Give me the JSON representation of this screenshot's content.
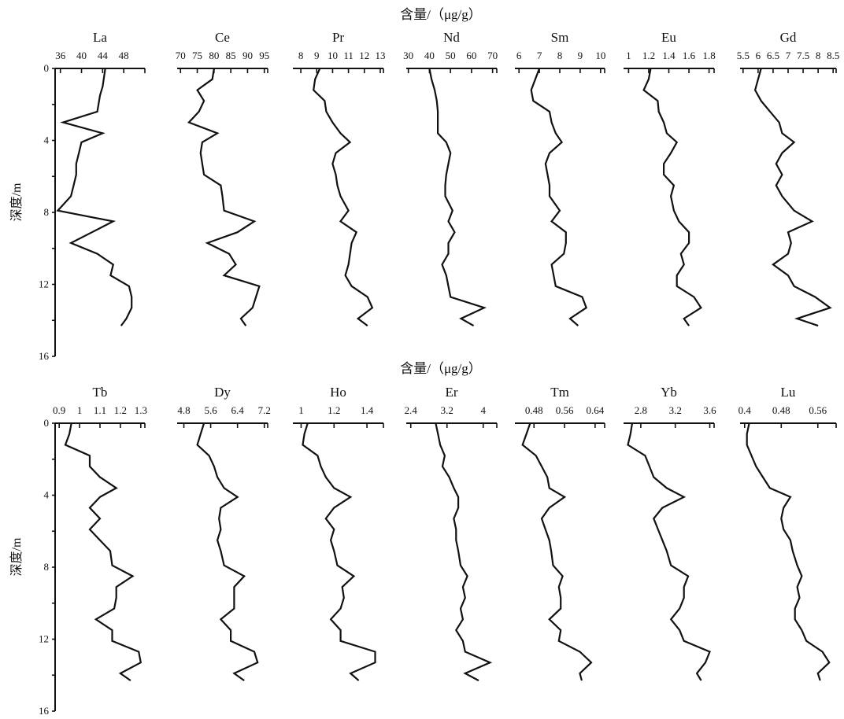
{
  "unit_title": "含量/（μg/g）",
  "ylabel": "深度/m",
  "depth_ticks": [
    0,
    4,
    8,
    12,
    16
  ],
  "chart_data": [
    {
      "type": "line",
      "name": "La",
      "xticks": [
        36,
        40,
        44,
        48
      ],
      "xlim": [
        35,
        52
      ],
      "ylim": [
        0,
        16
      ],
      "depth": [
        0,
        1,
        1.5,
        2.4,
        3.0,
        3.6,
        4.1,
        4.7,
        5.3,
        5.9,
        6.5,
        7.1,
        7.9,
        8.5,
        9.1,
        9.7,
        10.3,
        10.9,
        11.5,
        12.1,
        12.7,
        13.3,
        13.9,
        14.3
      ],
      "values": [
        44.5,
        44,
        43.5,
        43,
        36.5,
        44,
        40,
        39.5,
        39,
        39,
        38.5,
        38,
        35.5,
        46,
        42,
        38,
        43,
        46,
        45.5,
        49,
        49.5,
        49.5,
        48.5,
        47.5
      ]
    },
    {
      "type": "line",
      "name": "Ce",
      "xticks": [
        70,
        75,
        80,
        85,
        90,
        95
      ],
      "xlim": [
        69,
        96
      ],
      "ylim": [
        0,
        16
      ],
      "depth": [
        0,
        0.6,
        1.2,
        1.8,
        2.4,
        3.0,
        3.6,
        4.1,
        4.7,
        5.3,
        5.9,
        6.5,
        7.1,
        7.9,
        8.5,
        9.1,
        9.7,
        10.3,
        10.9,
        11.5,
        12.1,
        12.7,
        13.3,
        13.9,
        14.3
      ],
      "values": [
        80,
        79.5,
        75,
        77,
        75.5,
        72.5,
        81,
        76.5,
        76,
        76.5,
        77,
        82,
        82.5,
        83,
        92,
        87,
        78,
        84.5,
        86.5,
        83,
        93.5,
        92.5,
        91.5,
        88,
        89.5
      ]
    },
    {
      "type": "line",
      "name": "Pr",
      "xticks": [
        8,
        9,
        10,
        11,
        12,
        13
      ],
      "xlim": [
        7.5,
        13.2
      ],
      "ylim": [
        0,
        16
      ],
      "depth": [
        0,
        0.6,
        1.2,
        1.8,
        2.4,
        3.0,
        3.6,
        4.1,
        4.7,
        5.3,
        5.9,
        6.5,
        7.1,
        7.9,
        8.5,
        9.1,
        9.7,
        10.3,
        10.9,
        11.5,
        12.1,
        12.7,
        13.3,
        13.9,
        14.3
      ],
      "values": [
        9.2,
        8.9,
        8.8,
        9.5,
        9.6,
        10,
        10.5,
        11.1,
        10.2,
        10,
        10.2,
        10.3,
        10.5,
        11,
        10.5,
        11.5,
        11.2,
        11.1,
        11,
        10.8,
        11.2,
        12.2,
        12.5,
        11.6,
        12.2
      ]
    },
    {
      "type": "line",
      "name": "Nd",
      "xticks": [
        30,
        40,
        50,
        60,
        70
      ],
      "xlim": [
        29,
        72
      ],
      "ylim": [
        0,
        16
      ],
      "depth": [
        0,
        0.6,
        1.2,
        1.8,
        2.4,
        3.0,
        3.6,
        4.1,
        4.7,
        5.3,
        5.9,
        6.5,
        7.1,
        7.9,
        8.5,
        9.1,
        9.7,
        10.3,
        10.9,
        11.5,
        12.1,
        12.7,
        13.3,
        13.9,
        14.3
      ],
      "values": [
        40,
        41,
        42.5,
        43.5,
        44,
        44,
        44,
        48,
        50,
        49,
        48,
        47.5,
        47.5,
        51,
        49,
        52,
        49,
        49,
        46,
        48,
        49,
        50,
        66,
        55,
        61
      ]
    },
    {
      "type": "line",
      "name": "Sm",
      "xticks": [
        6,
        7,
        8,
        9,
        10
      ],
      "xlim": [
        5.8,
        10.2
      ],
      "ylim": [
        0,
        16
      ],
      "depth": [
        0,
        0.6,
        1.2,
        1.8,
        2.4,
        3.0,
        3.6,
        4.1,
        4.7,
        5.3,
        5.9,
        6.5,
        7.1,
        7.9,
        8.5,
        9.1,
        9.7,
        10.3,
        10.9,
        11.5,
        12.1,
        12.7,
        13.3,
        13.9,
        14.3
      ],
      "values": [
        7.0,
        6.8,
        6.6,
        6.7,
        7.5,
        7.6,
        7.8,
        8.1,
        7.5,
        7.3,
        7.4,
        7.5,
        7.5,
        8.0,
        7.6,
        8.3,
        8.3,
        8.2,
        7.6,
        7.7,
        7.8,
        9.1,
        9.3,
        8.5,
        8.9
      ]
    },
    {
      "type": "line",
      "name": "Eu",
      "xticks": [
        1,
        1.2,
        1.4,
        1.6,
        1.8
      ],
      "xlim": [
        0.95,
        1.85
      ],
      "ylim": [
        0,
        16
      ],
      "depth": [
        0,
        0.6,
        1.2,
        1.8,
        2.4,
        3.0,
        3.6,
        4.1,
        4.7,
        5.3,
        5.9,
        6.5,
        7.1,
        7.9,
        8.5,
        9.1,
        9.7,
        10.3,
        10.9,
        11.5,
        12.1,
        12.7,
        13.3,
        13.9,
        14.3
      ],
      "values": [
        1.22,
        1.2,
        1.15,
        1.29,
        1.3,
        1.35,
        1.38,
        1.48,
        1.42,
        1.35,
        1.35,
        1.45,
        1.42,
        1.45,
        1.5,
        1.6,
        1.6,
        1.52,
        1.55,
        1.48,
        1.48,
        1.65,
        1.72,
        1.55,
        1.6
      ]
    },
    {
      "type": "line",
      "name": "Gd",
      "xticks": [
        5.5,
        6,
        6.5,
        7,
        7.5,
        8,
        8.5
      ],
      "xlim": [
        5.4,
        8.6
      ],
      "ylim": [
        0,
        16
      ],
      "depth": [
        0,
        0.6,
        1.2,
        1.8,
        2.4,
        3.0,
        3.6,
        4.1,
        4.7,
        5.3,
        5.9,
        6.5,
        7.1,
        7.9,
        8.5,
        9.1,
        9.7,
        10.3,
        10.9,
        11.5,
        12.1,
        12.7,
        13.3,
        13.9,
        14.3
      ],
      "values": [
        6.1,
        6.0,
        5.9,
        6.1,
        6.4,
        6.7,
        6.8,
        7.2,
        6.8,
        6.6,
        6.8,
        6.6,
        6.8,
        7.2,
        7.8,
        7.0,
        7.1,
        7.0,
        6.5,
        7.0,
        7.2,
        7.9,
        8.4,
        7.3,
        8.0
      ]
    },
    {
      "type": "line",
      "name": "Tb",
      "xticks": [
        0.9,
        1,
        1.1,
        1.2,
        1.3
      ],
      "xlim": [
        0.88,
        1.32
      ],
      "ylim": [
        0,
        16
      ],
      "depth": [
        0,
        0.6,
        1.2,
        1.8,
        2.4,
        3.0,
        3.6,
        4.1,
        4.7,
        5.3,
        5.9,
        6.5,
        7.1,
        7.9,
        8.5,
        9.1,
        9.7,
        10.3,
        10.9,
        11.5,
        12.1,
        12.7,
        13.3,
        13.9,
        14.3
      ],
      "values": [
        0.96,
        0.95,
        0.93,
        1.05,
        1.05,
        1.1,
        1.18,
        1.1,
        1.05,
        1.1,
        1.05,
        1.1,
        1.15,
        1.16,
        1.26,
        1.18,
        1.18,
        1.17,
        1.08,
        1.16,
        1.16,
        1.29,
        1.3,
        1.2,
        1.25
      ]
    },
    {
      "type": "line",
      "name": "Dy",
      "xticks": [
        4.8,
        5.6,
        6.4,
        7.2
      ],
      "xlim": [
        4.6,
        7.3
      ],
      "ylim": [
        0,
        16
      ],
      "depth": [
        0,
        0.6,
        1.2,
        1.8,
        2.4,
        3.0,
        3.6,
        4.1,
        4.7,
        5.3,
        5.9,
        6.5,
        7.1,
        7.9,
        8.5,
        9.1,
        9.7,
        10.3,
        10.9,
        11.5,
        12.1,
        12.7,
        13.3,
        13.9,
        14.3
      ],
      "values": [
        5.4,
        5.3,
        5.2,
        5.55,
        5.7,
        5.8,
        6.0,
        6.4,
        5.9,
        5.85,
        5.9,
        5.8,
        5.9,
        6.0,
        6.6,
        6.3,
        6.3,
        6.3,
        5.9,
        6.2,
        6.2,
        6.9,
        7.0,
        6.3,
        6.6
      ]
    },
    {
      "type": "line",
      "name": "Ho",
      "xticks": [
        1,
        1.2,
        1.4
      ],
      "xlim": [
        0.95,
        1.5
      ],
      "ylim": [
        0,
        16
      ],
      "depth": [
        0,
        0.6,
        1.2,
        1.8,
        2.4,
        3.0,
        3.6,
        4.1,
        4.7,
        5.3,
        5.9,
        6.5,
        7.1,
        7.9,
        8.5,
        9.1,
        9.7,
        10.3,
        10.9,
        11.5,
        12.1,
        12.7,
        13.3,
        13.9,
        14.3
      ],
      "values": [
        1.04,
        1.02,
        1.01,
        1.1,
        1.12,
        1.15,
        1.2,
        1.3,
        1.2,
        1.15,
        1.2,
        1.18,
        1.2,
        1.22,
        1.32,
        1.25,
        1.26,
        1.24,
        1.18,
        1.24,
        1.24,
        1.45,
        1.45,
        1.3,
        1.35
      ]
    },
    {
      "type": "line",
      "name": "Er",
      "xticks": [
        2.4,
        3.2,
        4
      ],
      "xlim": [
        2.3,
        4.3
      ],
      "ylim": [
        0,
        16
      ],
      "depth": [
        0,
        0.6,
        1.2,
        1.8,
        2.4,
        3.0,
        3.6,
        4.1,
        4.7,
        5.3,
        5.9,
        6.5,
        7.1,
        7.9,
        8.5,
        9.1,
        9.7,
        10.3,
        10.9,
        11.5,
        12.1,
        12.7,
        13.3,
        13.9,
        14.3
      ],
      "values": [
        2.95,
        3.0,
        3.05,
        3.15,
        3.1,
        3.25,
        3.35,
        3.45,
        3.45,
        3.35,
        3.4,
        3.4,
        3.45,
        3.5,
        3.65,
        3.55,
        3.6,
        3.5,
        3.55,
        3.4,
        3.55,
        3.6,
        4.15,
        3.6,
        3.9
      ]
    },
    {
      "type": "line",
      "name": "Tm",
      "xticks": [
        0.48,
        0.56,
        0.64
      ],
      "xlim": [
        0.43,
        0.665
      ],
      "ylim": [
        0,
        16
      ],
      "depth": [
        0,
        0.6,
        1.2,
        1.8,
        2.4,
        3.0,
        3.6,
        4.1,
        4.7,
        5.3,
        5.9,
        6.5,
        7.1,
        7.9,
        8.5,
        9.1,
        9.7,
        10.3,
        10.9,
        11.5,
        12.1,
        12.7,
        13.3,
        13.9,
        14.3
      ],
      "values": [
        0.47,
        0.46,
        0.45,
        0.485,
        0.5,
        0.515,
        0.52,
        0.56,
        0.52,
        0.5,
        0.51,
        0.52,
        0.525,
        0.53,
        0.555,
        0.545,
        0.55,
        0.55,
        0.52,
        0.55,
        0.545,
        0.6,
        0.63,
        0.6,
        0.605
      ]
    },
    {
      "type": "line",
      "name": "Yb",
      "xticks": [
        2.8,
        3.2,
        3.6
      ],
      "xlim": [
        2.6,
        3.65
      ],
      "ylim": [
        0,
        16
      ],
      "depth": [
        0,
        0.6,
        1.2,
        1.8,
        2.4,
        3.0,
        3.6,
        4.1,
        4.7,
        5.3,
        5.9,
        6.5,
        7.1,
        7.9,
        8.5,
        9.1,
        9.7,
        10.3,
        10.9,
        11.5,
        12.1,
        12.7,
        13.3,
        13.9,
        14.3
      ],
      "values": [
        2.7,
        2.68,
        2.65,
        2.85,
        2.9,
        2.95,
        3.1,
        3.3,
        3.05,
        2.95,
        3.0,
        3.05,
        3.1,
        3.15,
        3.35,
        3.3,
        3.3,
        3.25,
        3.15,
        3.25,
        3.3,
        3.6,
        3.55,
        3.45,
        3.5
      ]
    },
    {
      "type": "line",
      "name": "Lu",
      "xticks": [
        0.4,
        0.48,
        0.56
      ],
      "xlim": [
        0.39,
        0.6
      ],
      "ylim": [
        0,
        16
      ],
      "depth": [
        0,
        0.6,
        1.2,
        1.8,
        2.4,
        3.0,
        3.6,
        4.1,
        4.7,
        5.3,
        5.9,
        6.5,
        7.1,
        7.9,
        8.5,
        9.1,
        9.7,
        10.3,
        10.9,
        11.5,
        12.1,
        12.7,
        13.3,
        13.9,
        14.3
      ],
      "values": [
        0.41,
        0.405,
        0.405,
        0.415,
        0.425,
        0.44,
        0.455,
        0.5,
        0.485,
        0.48,
        0.485,
        0.5,
        0.505,
        0.515,
        0.525,
        0.515,
        0.52,
        0.51,
        0.51,
        0.525,
        0.535,
        0.57,
        0.585,
        0.56,
        0.565
      ]
    }
  ]
}
